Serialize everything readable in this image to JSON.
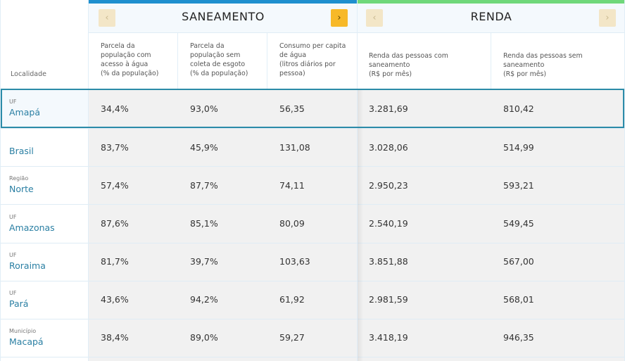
{
  "groups": {
    "saneamento": {
      "title": "SANEAMENTO",
      "prev_icon": "‹",
      "next_icon": "›",
      "accent": "#1e8fce"
    },
    "renda": {
      "title": "RENDA",
      "prev_icon": "‹",
      "next_icon": "›",
      "accent": "#6fd87a"
    }
  },
  "header": {
    "localidade": "Localidade",
    "saneamento_cols": [
      [
        "Parcela da",
        "população com",
        "acesso à água",
        "(% da população)"
      ],
      [
        "Parcela da",
        "população sem",
        "coleta de esgoto",
        "(% da população)"
      ],
      [
        "Consumo per capita",
        "de água",
        "(litros diários por",
        "pessoa)"
      ]
    ],
    "renda_cols": [
      [
        "Renda das pessoas com",
        "saneamento",
        "(R$ por mês)"
      ],
      [
        "Renda das pessoas sem",
        "saneamento",
        "(R$ por mês)"
      ]
    ]
  },
  "rows": [
    {
      "type": "UF",
      "name": "Amapá",
      "values": [
        "34,4%",
        "93,0%",
        "56,35",
        "3.281,69",
        "810,42"
      ],
      "selected": true
    },
    {
      "type": "",
      "name": "Brasil",
      "values": [
        "83,7%",
        "45,9%",
        "131,08",
        "3.028,06",
        "514,99"
      ]
    },
    {
      "type": "Região",
      "name": "Norte",
      "values": [
        "57,4%",
        "87,7%",
        "74,11",
        "2.950,23",
        "593,21"
      ]
    },
    {
      "type": "UF",
      "name": "Amazonas",
      "values": [
        "87,6%",
        "85,1%",
        "80,09",
        "2.540,19",
        "549,45"
      ]
    },
    {
      "type": "UF",
      "name": "Roraima",
      "values": [
        "81,7%",
        "39,7%",
        "103,63",
        "3.851,88",
        "567,00"
      ]
    },
    {
      "type": "UF",
      "name": "Pará",
      "values": [
        "43,6%",
        "94,2%",
        "61,92",
        "2.981,59",
        "568,01"
      ]
    },
    {
      "type": "Município",
      "name": "Macapá",
      "values": [
        "38,4%",
        "89,0%",
        "59,27",
        "3.418,19",
        "946,35"
      ]
    }
  ]
}
